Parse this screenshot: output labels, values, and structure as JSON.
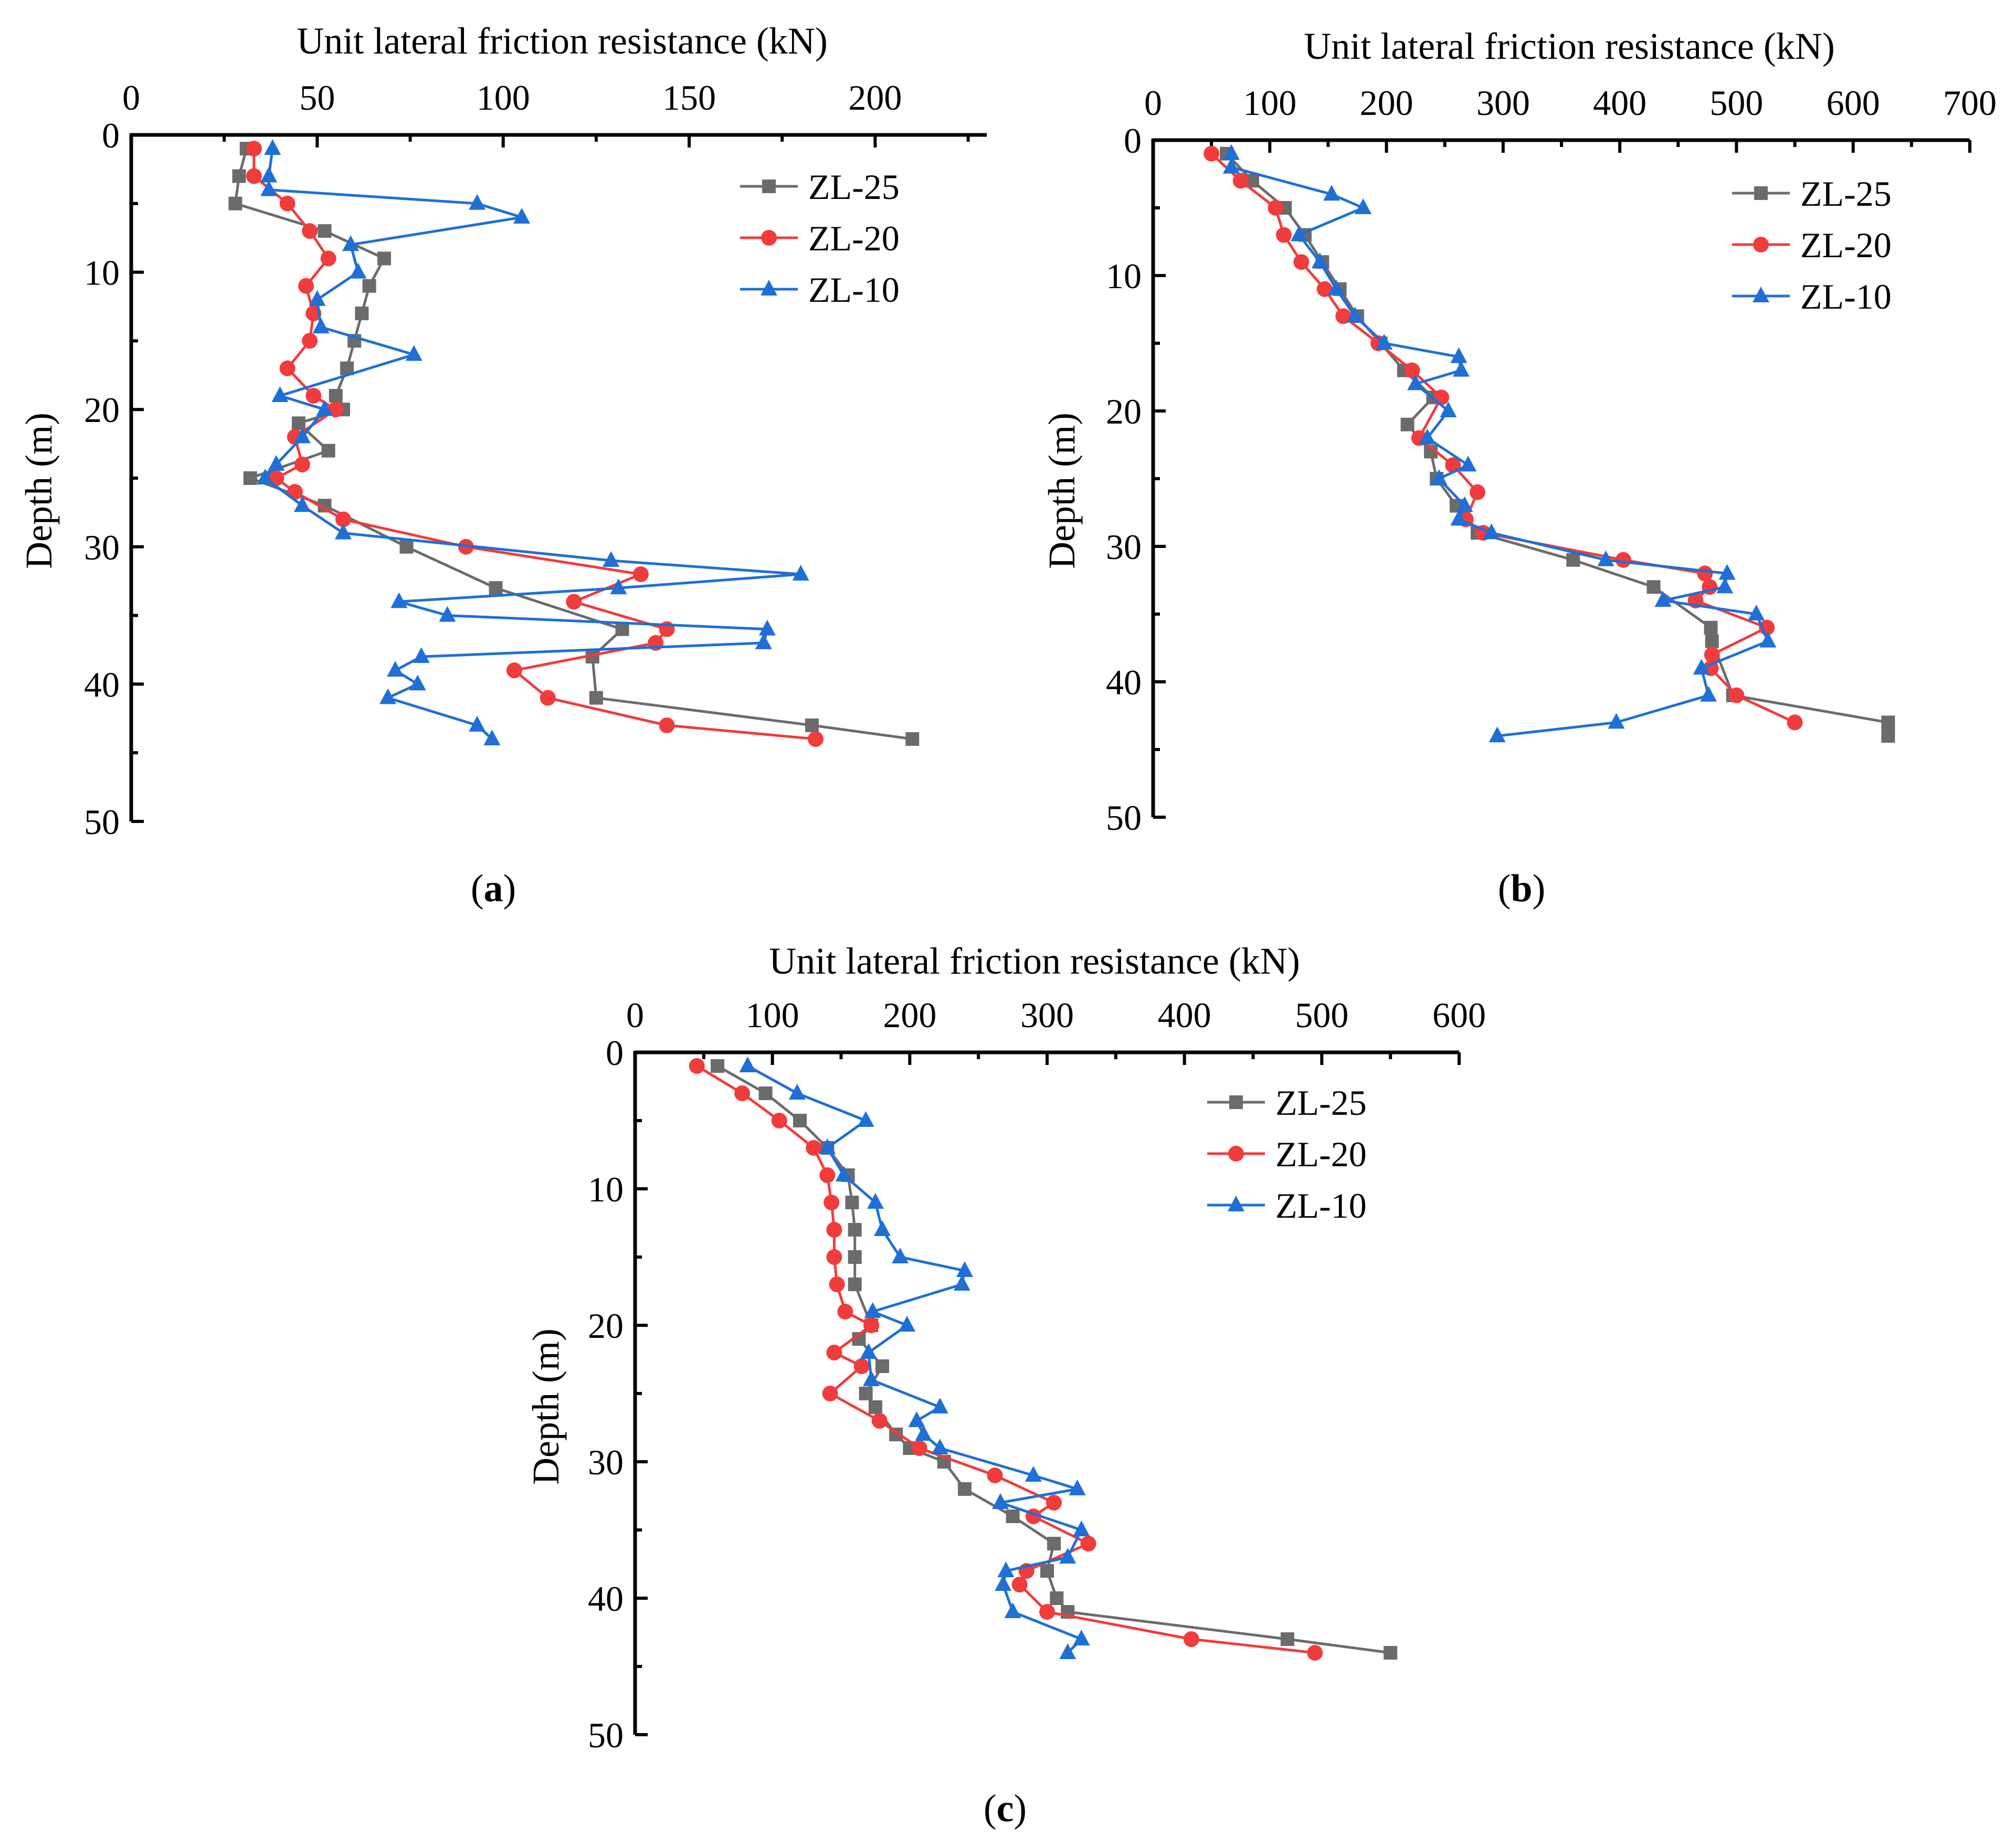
{
  "colors": {
    "ZL-25": "#6b6b6b",
    "ZL-20": "#f03c3c",
    "ZL-10": "#1f6fd6"
  },
  "chart_data": [
    {
      "type": "line",
      "panel": "a",
      "caption_letter": "a",
      "xlabel": "Unit lateral friction resistance (kN)",
      "ylabel": "Depth (m)",
      "xlim": [
        0,
        230
      ],
      "ylim": [
        0,
        50
      ],
      "x_ticks": [
        0,
        50,
        100,
        150,
        200
      ],
      "y_ticks": [
        0,
        10,
        20,
        30,
        40,
        50
      ],
      "x_axis_position": "top",
      "y_axis_inverted": true,
      "legend_position": "top-right",
      "series": [
        {
          "name": "ZL-25",
          "marker": "square",
          "points": [
            [
              31,
              1
            ],
            [
              29,
              3
            ],
            [
              28,
              5
            ],
            [
              52,
              7
            ],
            [
              68,
              9
            ],
            [
              64,
              11
            ],
            [
              62,
              13
            ],
            [
              60,
              15
            ],
            [
              58,
              17
            ],
            [
              55,
              19
            ],
            [
              57,
              20
            ],
            [
              45,
              21
            ],
            [
              53,
              23
            ],
            [
              32,
              25
            ],
            [
              52,
              27
            ],
            [
              74,
              30
            ],
            [
              98,
              33
            ],
            [
              132,
              36
            ],
            [
              124,
              38
            ],
            [
              125,
              41
            ],
            [
              183,
              43
            ],
            [
              210,
              44
            ]
          ]
        },
        {
          "name": "ZL-20",
          "marker": "circle",
          "points": [
            [
              33,
              1
            ],
            [
              33,
              3
            ],
            [
              42,
              5
            ],
            [
              48,
              7
            ],
            [
              53,
              9
            ],
            [
              47,
              11
            ],
            [
              49,
              13
            ],
            [
              48,
              15
            ],
            [
              42,
              17
            ],
            [
              49,
              19
            ],
            [
              55,
              20
            ],
            [
              44,
              22
            ],
            [
              46,
              24
            ],
            [
              39,
              25
            ],
            [
              44,
              26
            ],
            [
              57,
              28
            ],
            [
              90,
              30
            ],
            [
              137,
              32
            ],
            [
              119,
              34
            ],
            [
              144,
              36
            ],
            [
              141,
              37
            ],
            [
              103,
              39
            ],
            [
              112,
              41
            ],
            [
              144,
              43
            ],
            [
              184,
              44
            ]
          ]
        },
        {
          "name": "ZL-10",
          "marker": "triangle",
          "points": [
            [
              38,
              1
            ],
            [
              37,
              3
            ],
            [
              37,
              4
            ],
            [
              93,
              5
            ],
            [
              105,
              6
            ],
            [
              59,
              8
            ],
            [
              61,
              10
            ],
            [
              50,
              12
            ],
            [
              51,
              14
            ],
            [
              76,
              16
            ],
            [
              40,
              19
            ],
            [
              52,
              20
            ],
            [
              46,
              22
            ],
            [
              39,
              24
            ],
            [
              36,
              25
            ],
            [
              46,
              27
            ],
            [
              57,
              29
            ],
            [
              129,
              31
            ],
            [
              180,
              32
            ],
            [
              131,
              33
            ],
            [
              72,
              34
            ],
            [
              85,
              35
            ],
            [
              171,
              36
            ],
            [
              170,
              37
            ],
            [
              78,
              38
            ],
            [
              71,
              39
            ],
            [
              77,
              40
            ],
            [
              69,
              41
            ],
            [
              93,
              43
            ],
            [
              97,
              44
            ]
          ]
        }
      ]
    },
    {
      "type": "line",
      "panel": "b",
      "caption_letter": "b",
      "xlabel": "Unit lateral friction resistance (kN)",
      "ylabel": "Depth (m)",
      "xlim": [
        0,
        700
      ],
      "ylim": [
        0,
        50
      ],
      "x_ticks": [
        0,
        100,
        200,
        300,
        400,
        500,
        600,
        700
      ],
      "y_ticks": [
        0,
        10,
        20,
        30,
        40,
        50
      ],
      "x_axis_position": "top",
      "y_axis_inverted": true,
      "legend_position": "top-right",
      "series": [
        {
          "name": "ZL-25",
          "marker": "square",
          "points": [
            [
              63,
              1
            ],
            [
              85,
              3
            ],
            [
              113,
              5
            ],
            [
              130,
              7
            ],
            [
              145,
              9
            ],
            [
              160,
              11
            ],
            [
              175,
              13
            ],
            [
              195,
              15
            ],
            [
              215,
              17
            ],
            [
              240,
              19
            ],
            [
              218,
              21
            ],
            [
              238,
              23
            ],
            [
              243,
              25
            ],
            [
              260,
              27
            ],
            [
              278,
              29
            ],
            [
              360,
              31
            ],
            [
              429,
              33
            ],
            [
              478,
              36
            ],
            [
              479,
              37
            ],
            [
              497,
              41
            ],
            [
              630,
              43
            ],
            [
              630,
              44
            ]
          ]
        },
        {
          "name": "ZL-20",
          "marker": "circle",
          "points": [
            [
              50,
              1
            ],
            [
              75,
              3
            ],
            [
              105,
              5
            ],
            [
              112,
              7
            ],
            [
              127,
              9
            ],
            [
              147,
              11
            ],
            [
              163,
              13
            ],
            [
              193,
              15
            ],
            [
              222,
              17
            ],
            [
              247,
              19
            ],
            [
              228,
              22
            ],
            [
              257,
              24
            ],
            [
              278,
              26
            ],
            [
              268,
              28
            ],
            [
              283,
              29
            ],
            [
              403,
              31
            ],
            [
              473,
              32
            ],
            [
              477,
              33
            ],
            [
              465,
              34
            ],
            [
              526,
              36
            ],
            [
              479,
              38
            ],
            [
              478,
              39
            ],
            [
              500,
              41
            ],
            [
              550,
              43
            ]
          ]
        },
        {
          "name": "ZL-10",
          "marker": "triangle",
          "points": [
            [
              67,
              1
            ],
            [
              67,
              2
            ],
            [
              153,
              4
            ],
            [
              180,
              5
            ],
            [
              125,
              7
            ],
            [
              143,
              9
            ],
            [
              157,
              11
            ],
            [
              173,
              13
            ],
            [
              198,
              15
            ],
            [
              262,
              16
            ],
            [
              264,
              17
            ],
            [
              225,
              18
            ],
            [
              253,
              20
            ],
            [
              235,
              22
            ],
            [
              270,
              24
            ],
            [
              245,
              25
            ],
            [
              267,
              27
            ],
            [
              262,
              28
            ],
            [
              290,
              29
            ],
            [
              388,
              31
            ],
            [
              492,
              32
            ],
            [
              490,
              33
            ],
            [
              437,
              34
            ],
            [
              517,
              35
            ],
            [
              527,
              37
            ],
            [
              470,
              39
            ],
            [
              476,
              41
            ],
            [
              397,
              43
            ],
            [
              295,
              44
            ]
          ]
        }
      ]
    },
    {
      "type": "line",
      "panel": "c",
      "caption_letter": "c",
      "xlabel": "Unit lateral friction resistance (kN)",
      "ylabel": "Depth (m)",
      "xlim": [
        0,
        600
      ],
      "ylim": [
        0,
        50
      ],
      "x_ticks": [
        0,
        100,
        200,
        300,
        400,
        500,
        600
      ],
      "y_ticks": [
        0,
        10,
        20,
        30,
        40,
        50
      ],
      "x_axis_position": "top",
      "y_axis_inverted": true,
      "legend_position": "top-right",
      "series": [
        {
          "name": "ZL-25",
          "marker": "square",
          "points": [
            [
              60,
              1
            ],
            [
              95,
              3
            ],
            [
              120,
              5
            ],
            [
              140,
              7
            ],
            [
              155,
              9
            ],
            [
              158,
              11
            ],
            [
              160,
              13
            ],
            [
              160,
              15
            ],
            [
              160,
              17
            ],
            [
              172,
              20
            ],
            [
              163,
              21
            ],
            [
              180,
              23
            ],
            [
              168,
              25
            ],
            [
              175,
              26
            ],
            [
              190,
              28
            ],
            [
              200,
              29
            ],
            [
              225,
              30
            ],
            [
              240,
              32
            ],
            [
              275,
              34
            ],
            [
              305,
              36
            ],
            [
              300,
              38
            ],
            [
              307,
              40
            ],
            [
              315,
              41
            ],
            [
              475,
              43
            ],
            [
              550,
              44
            ]
          ]
        },
        {
          "name": "ZL-20",
          "marker": "circle",
          "points": [
            [
              45,
              1
            ],
            [
              78,
              3
            ],
            [
              105,
              5
            ],
            [
              130,
              7
            ],
            [
              140,
              9
            ],
            [
              143,
              11
            ],
            [
              145,
              13
            ],
            [
              145,
              15
            ],
            [
              147,
              17
            ],
            [
              153,
              19
            ],
            [
              172,
              20
            ],
            [
              145,
              22
            ],
            [
              165,
              23
            ],
            [
              142,
              25
            ],
            [
              178,
              27
            ],
            [
              207,
              29
            ],
            [
              262,
              31
            ],
            [
              305,
              33
            ],
            [
              290,
              34
            ],
            [
              330,
              36
            ],
            [
              285,
              38
            ],
            [
              280,
              39
            ],
            [
              300,
              41
            ],
            [
              405,
              43
            ],
            [
              495,
              44
            ]
          ]
        },
        {
          "name": "ZL-10",
          "marker": "triangle",
          "points": [
            [
              82,
              1
            ],
            [
              118,
              3
            ],
            [
              168,
              5
            ],
            [
              140,
              7
            ],
            [
              152,
              9
            ],
            [
              175,
              11
            ],
            [
              180,
              13
            ],
            [
              193,
              15
            ],
            [
              240,
              16
            ],
            [
              238,
              17
            ],
            [
              173,
              19
            ],
            [
              198,
              20
            ],
            [
              170,
              22
            ],
            [
              172,
              24
            ],
            [
              222,
              26
            ],
            [
              205,
              27
            ],
            [
              210,
              28
            ],
            [
              222,
              29
            ],
            [
              290,
              31
            ],
            [
              322,
              32
            ],
            [
              266,
              33
            ],
            [
              325,
              35
            ],
            [
              315,
              37
            ],
            [
              270,
              38
            ],
            [
              268,
              39
            ],
            [
              275,
              41
            ],
            [
              325,
              43
            ],
            [
              315,
              44
            ]
          ]
        }
      ]
    }
  ]
}
